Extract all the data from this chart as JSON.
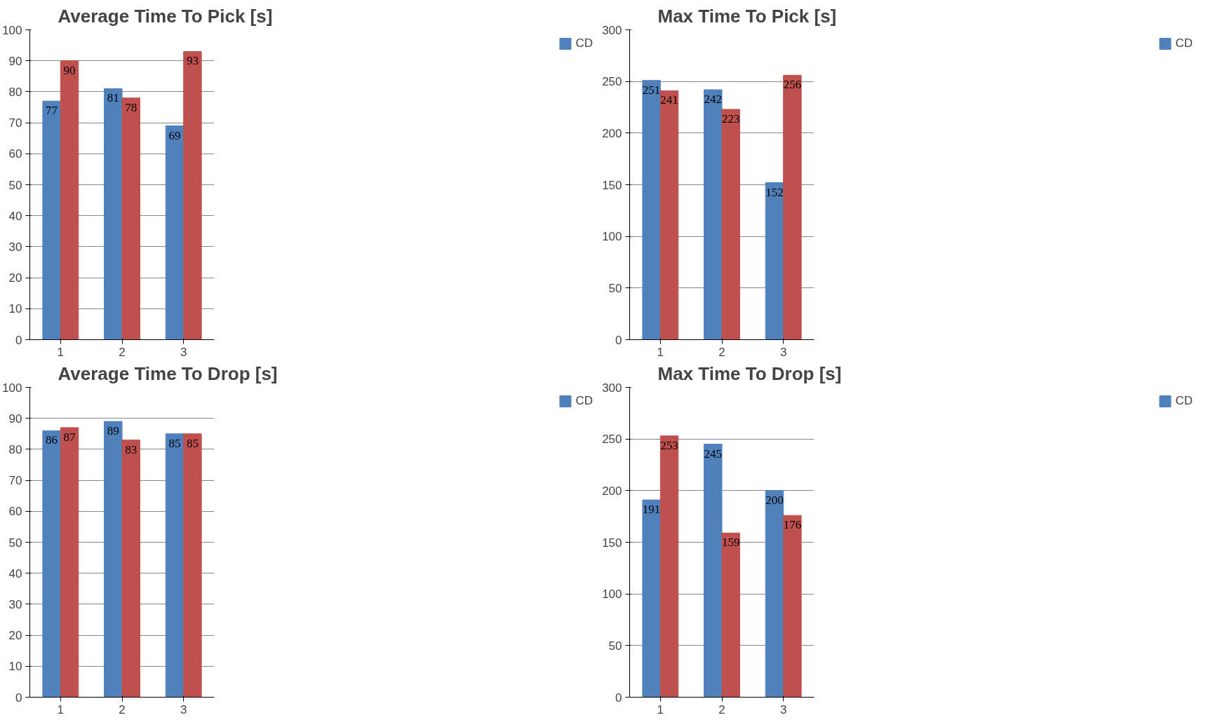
{
  "chart_data": [
    {
      "type": "bar",
      "title": "Average Time To Pick [s]",
      "categories": [
        "1",
        "2",
        "3"
      ],
      "series": [
        {
          "name": "CD",
          "color": "#4f81bd",
          "values": [
            77,
            81,
            69
          ]
        },
        {
          "color": "#c0504d",
          "values": [
            90,
            78,
            93
          ]
        }
      ],
      "ylim": [
        0,
        100
      ],
      "yticks": [
        0,
        10,
        20,
        30,
        40,
        50,
        60,
        70,
        80,
        90,
        100
      ],
      "grid": "y",
      "legend": "right",
      "data_labels": true
    },
    {
      "type": "bar",
      "title": "Max Time To Pick [s]",
      "categories": [
        "1",
        "2",
        "3"
      ],
      "series": [
        {
          "name": "CD",
          "color": "#4f81bd",
          "values": [
            251,
            242,
            152
          ]
        },
        {
          "color": "#c0504d",
          "values": [
            241,
            223,
            256
          ]
        }
      ],
      "ylim": [
        0,
        300
      ],
      "yticks": [
        0,
        50,
        100,
        150,
        200,
        250,
        300
      ],
      "grid": "y",
      "legend": "right",
      "data_labels": true
    },
    {
      "type": "bar",
      "title": "Average Time To Drop [s]",
      "categories": [
        "1",
        "2",
        "3"
      ],
      "series": [
        {
          "name": "CD",
          "color": "#4f81bd",
          "values": [
            86,
            89,
            85
          ]
        },
        {
          "color": "#c0504d",
          "values": [
            87,
            83,
            85
          ]
        }
      ],
      "ylim": [
        0,
        100
      ],
      "yticks": [
        0,
        10,
        20,
        30,
        40,
        50,
        60,
        70,
        80,
        90,
        100
      ],
      "grid": "y",
      "legend": "right",
      "data_labels": true
    },
    {
      "type": "bar",
      "title": "Max Time To Drop [s]",
      "categories": [
        "1",
        "2",
        "3"
      ],
      "series": [
        {
          "name": "CD",
          "color": "#4f81bd",
          "values": [
            191,
            245,
            200
          ]
        },
        {
          "color": "#c0504d",
          "values": [
            253,
            159,
            176
          ]
        }
      ],
      "ylim": [
        0,
        300
      ],
      "yticks": [
        0,
        50,
        100,
        150,
        200,
        250,
        300
      ],
      "grid": "y",
      "legend": "right",
      "data_labels": true
    }
  ]
}
